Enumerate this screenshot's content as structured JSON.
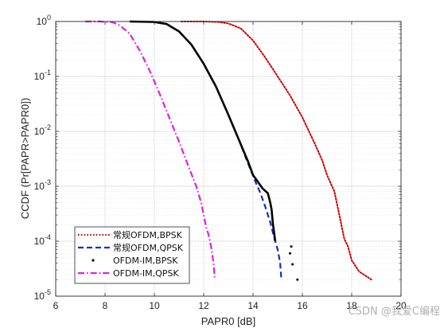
{
  "chart_data": {
    "type": "line",
    "title": "",
    "xlabel": "PAPR0 [dB]",
    "ylabel": "CCDF (Pr[PAPR>PAPR0])",
    "xlim": [
      6,
      20
    ],
    "ylim": [
      1e-05,
      1
    ],
    "yscale": "log",
    "grid": true,
    "legend_position": "bottom-left",
    "x_ticks": [
      "6",
      "8",
      "10",
      "12",
      "14",
      "16",
      "18",
      "20"
    ],
    "y_ticks": [
      {
        "value": 1,
        "base": "10",
        "exp": "0"
      },
      {
        "value": 0.1,
        "base": "10",
        "exp": "-1"
      },
      {
        "value": 0.01,
        "base": "10",
        "exp": "-2"
      },
      {
        "value": 0.001,
        "base": "10",
        "exp": "-3"
      },
      {
        "value": 0.0001,
        "base": "10",
        "exp": "-4"
      },
      {
        "value": 1e-05,
        "base": "10",
        "exp": "-5"
      }
    ],
    "series": [
      {
        "name": "常规OFDM,BPSK",
        "color": "#cc0000",
        "style": "dotted",
        "x": [
          11.1,
          12.0,
          12.6,
          13.0,
          13.5,
          14.0,
          14.5,
          15.0,
          15.5,
          16.0,
          16.5,
          16.8,
          17.0,
          17.3,
          17.5,
          17.6,
          17.7,
          17.85,
          18.0,
          18.3,
          18.8
        ],
        "y": [
          1.0,
          1.0,
          0.98,
          0.92,
          0.75,
          0.45,
          0.22,
          0.1,
          0.045,
          0.018,
          0.006,
          0.003,
          0.0016,
          0.0008,
          0.0003,
          0.00018,
          0.00011,
          8e-05,
          4.5e-05,
          2.8e-05,
          2e-05
        ]
      },
      {
        "name": "常规OFDM,QPSK",
        "color": "#1030c0",
        "style": "dashed",
        "x": [
          9.0,
          10.0,
          10.5,
          11.0,
          11.5,
          12.0,
          12.5,
          13.0,
          13.4,
          13.8,
          14.1,
          14.3,
          14.5,
          14.7,
          14.85,
          15.0,
          15.1,
          15.15
        ],
        "y": [
          1.0,
          0.98,
          0.9,
          0.66,
          0.38,
          0.17,
          0.065,
          0.02,
          0.0075,
          0.0026,
          0.0012,
          0.00075,
          0.00042,
          0.00022,
          0.00012,
          7e-05,
          4e-05,
          2e-05
        ]
      },
      {
        "name": "OFDM-IM,BPSK",
        "color": "#000000",
        "style": "solid",
        "x": [
          9.0,
          10.0,
          10.5,
          11.0,
          11.5,
          12.0,
          12.5,
          13.0,
          13.4,
          13.8,
          14.0,
          14.2,
          14.4,
          14.6,
          14.7,
          14.75,
          14.8,
          14.9
        ],
        "y": [
          1.0,
          0.98,
          0.9,
          0.66,
          0.38,
          0.17,
          0.065,
          0.02,
          0.0075,
          0.0028,
          0.0016,
          0.0012,
          0.0009,
          0.00075,
          0.0005,
          0.00038,
          0.00022,
          0.0001
        ],
        "markers": [
          [
            15.55,
            8e-05
          ],
          [
            15.5,
            6e-05
          ],
          [
            15.6,
            3.8e-05
          ],
          [
            15.8,
            2e-05
          ]
        ]
      },
      {
        "name": "OFDM-IM,QPSK",
        "color": "#e020e0",
        "style": "dashdot",
        "x": [
          7.2,
          7.8,
          8.3,
          8.6,
          9.0,
          9.4,
          9.8,
          10.2,
          10.6,
          11.0,
          11.4,
          11.7,
          11.9,
          12.0,
          12.1,
          12.2,
          12.3,
          12.4,
          12.45
        ],
        "y": [
          1.0,
          1.0,
          0.97,
          0.85,
          0.6,
          0.3,
          0.13,
          0.05,
          0.018,
          0.0065,
          0.0022,
          0.001,
          0.0005,
          0.0003,
          0.00018,
          0.00013,
          8e-05,
          4e-05,
          2e-05
        ]
      }
    ]
  },
  "watermark": "CSDN @我爱C编程"
}
